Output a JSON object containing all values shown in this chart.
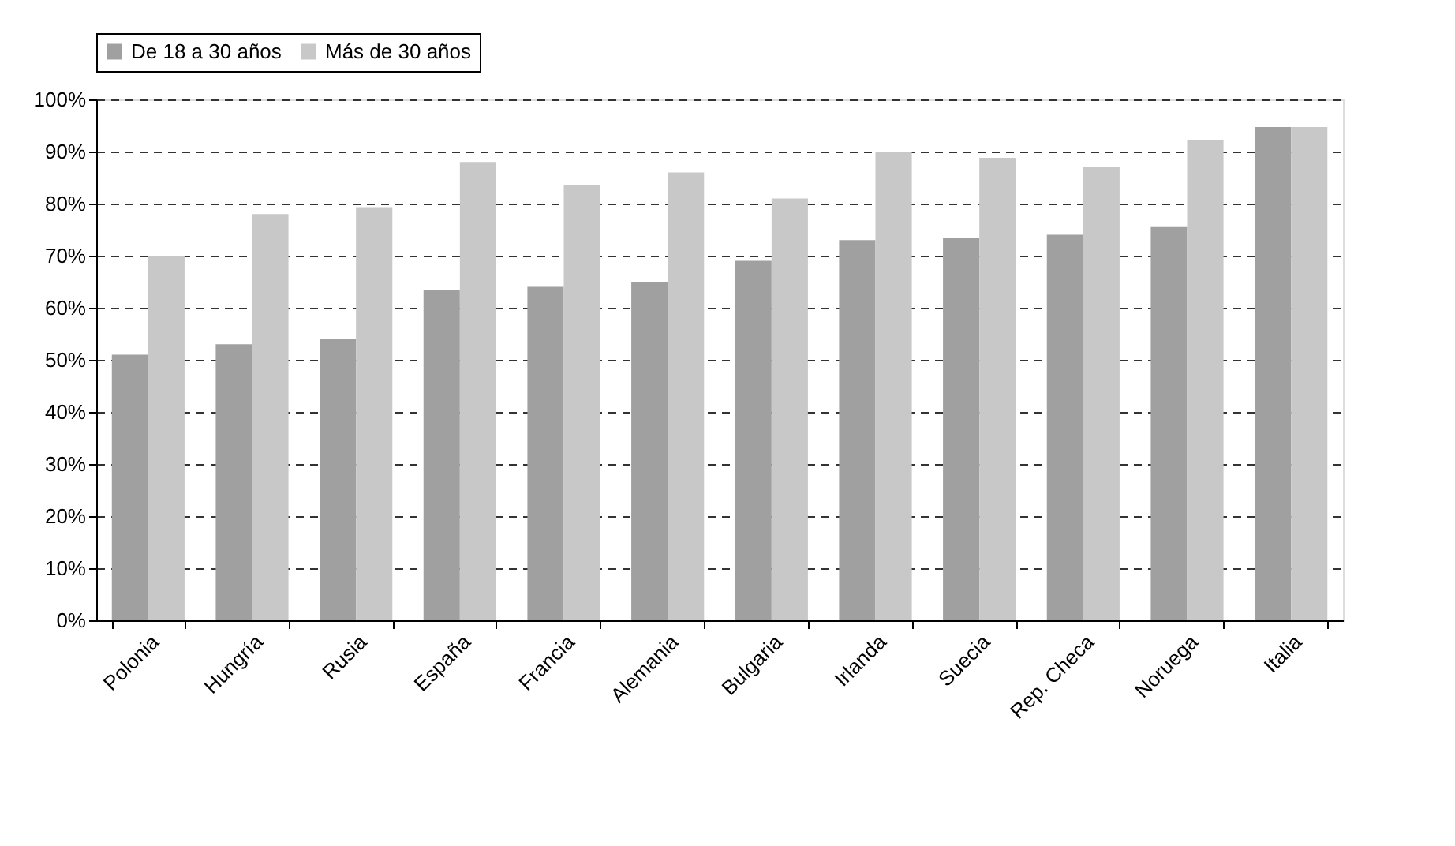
{
  "chart_data": {
    "type": "bar",
    "categories": [
      "Polonia",
      "Hungría",
      "Rusia",
      "España",
      "Francia",
      "Alemania",
      "Bulgaria",
      "Irlanda",
      "Suecia",
      "Rep. Checa",
      "Noruega",
      "Italia"
    ],
    "series": [
      {
        "name": "De 18 a 30 años",
        "color": "#a0a0a0",
        "values": [
          51,
          53,
          54,
          63.5,
          64,
          65,
          69,
          73,
          73.5,
          74,
          75.5,
          94.7
        ]
      },
      {
        "name": "Más de 30 años",
        "color": "#c8c8c8",
        "values": [
          70,
          78,
          79.3,
          88,
          83.6,
          86,
          81,
          90,
          88.8,
          87,
          92.2,
          94.7
        ]
      }
    ],
    "ylim": [
      0,
      100
    ],
    "yticks": [
      {
        "value": 0,
        "label": "0%"
      },
      {
        "value": 10,
        "label": "10%"
      },
      {
        "value": 20,
        "label": "20%"
      },
      {
        "value": 30,
        "label": "30%"
      },
      {
        "value": 40,
        "label": "40%"
      },
      {
        "value": 50,
        "label": "50%"
      },
      {
        "value": 60,
        "label": "60%"
      },
      {
        "value": 70,
        "label": "70%"
      },
      {
        "value": 80,
        "label": "80%"
      },
      {
        "value": 90,
        "label": "90%"
      },
      {
        "value": 100,
        "label": "100%"
      }
    ],
    "grid": "y",
    "legend": "top"
  }
}
